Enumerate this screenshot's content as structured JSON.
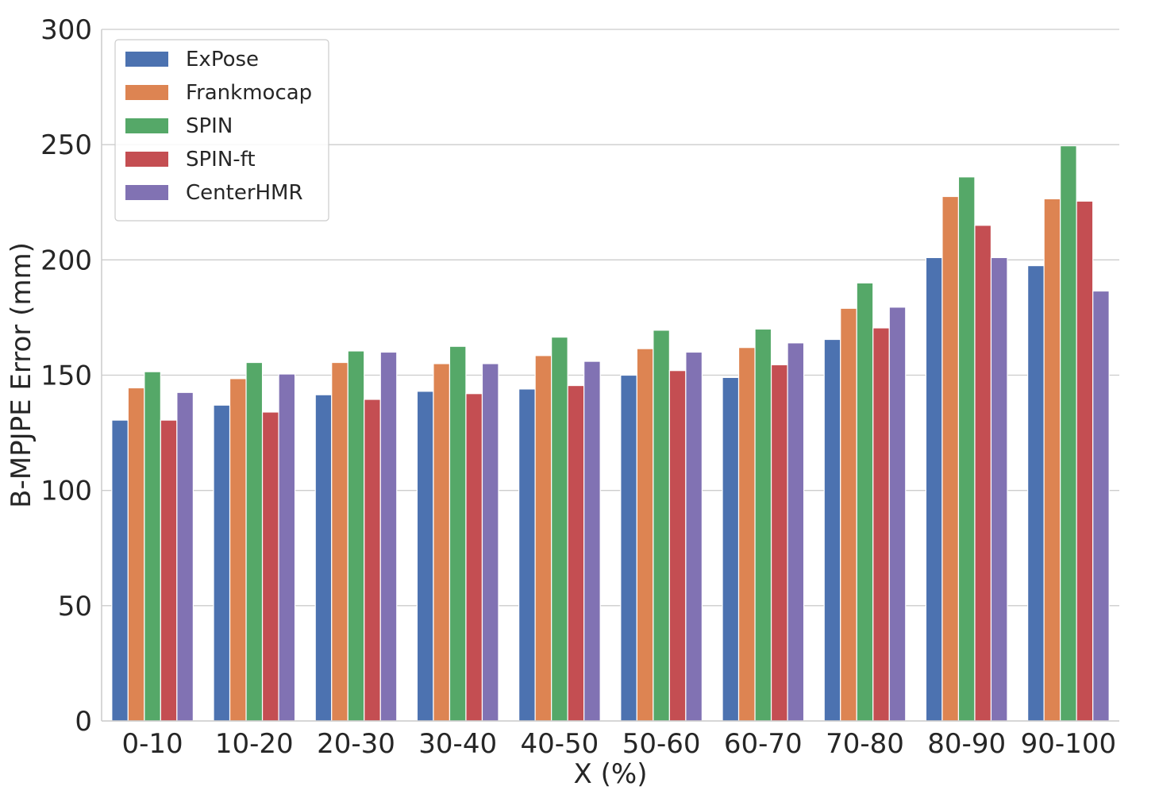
{
  "chart_data": {
    "type": "bar",
    "title": "",
    "xlabel": "X (%)",
    "ylabel": "B-MPJPE Error (mm)",
    "ylim": [
      0,
      300
    ],
    "yticks": [
      0,
      50,
      100,
      150,
      200,
      250,
      300
    ],
    "grid": "horizontal",
    "legend_position": "top-left",
    "categories": [
      "0-10",
      "10-20",
      "20-30",
      "30-40",
      "40-50",
      "50-60",
      "60-70",
      "70-80",
      "80-90",
      "90-100"
    ],
    "series": [
      {
        "name": "ExPose",
        "color": "#4c72b0",
        "values": [
          130.5,
          137,
          141.5,
          143,
          144,
          150,
          149,
          165.5,
          201,
          197.5
        ]
      },
      {
        "name": "Frankmocap",
        "color": "#dd8452",
        "values": [
          144.5,
          148.5,
          155.5,
          155,
          158.5,
          161.5,
          162,
          179,
          227.5,
          226.5
        ]
      },
      {
        "name": "SPIN",
        "color": "#55a868",
        "values": [
          151.5,
          155.5,
          160.5,
          162.5,
          166.5,
          169.5,
          170,
          190,
          236,
          249.5
        ]
      },
      {
        "name": "SPIN-ft",
        "color": "#c44e52",
        "values": [
          130.5,
          134,
          139.5,
          142,
          145.5,
          152,
          154.5,
          170.5,
          215,
          225.5
        ]
      },
      {
        "name": "CenterHMR",
        "color": "#8172b3",
        "values": [
          142.5,
          150.5,
          160,
          155,
          156,
          160,
          164,
          179.5,
          201,
          186.5
        ]
      }
    ]
  }
}
